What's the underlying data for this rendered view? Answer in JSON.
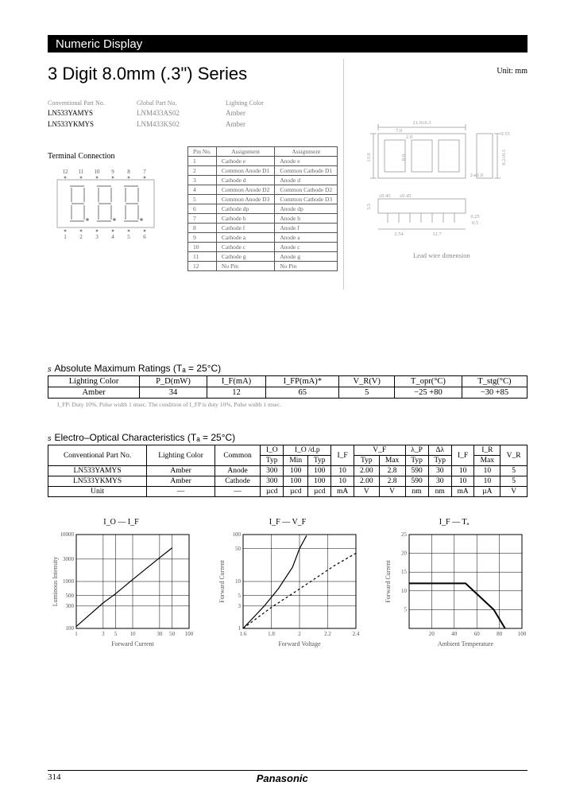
{
  "banner": "Numeric Display",
  "title": "3 Digit 8.0mm (.3\") Series",
  "unit_label": "Unit: mm",
  "parts": {
    "head": {
      "conv": "Conventional Part No.",
      "glob": "Global Part No.",
      "light": "Lighting Color"
    },
    "rows": [
      {
        "conv": "LN533YAMYS",
        "glob": "LNM433AS02",
        "light": "Amber"
      },
      {
        "conv": "LN533YKMYS",
        "glob": "LNM433KS02",
        "light": "Amber"
      }
    ]
  },
  "terminal": {
    "title": "Terminal Connection",
    "pins_top": [
      "12",
      "11",
      "10",
      "9",
      "8",
      "7"
    ],
    "pins_bot": [
      "1",
      "2",
      "3",
      "4",
      "5",
      "6"
    ],
    "header": {
      "no": "Pin No.",
      "a1": "Assignment",
      "a2": "Assignment"
    },
    "rows": [
      {
        "n": "1",
        "a": "Cathode e",
        "b": "Anode e"
      },
      {
        "n": "2",
        "a": "Common Anode D1",
        "b": "Common Cathode D1"
      },
      {
        "n": "3",
        "a": "Cathode d",
        "b": "Anode d"
      },
      {
        "n": "4",
        "a": "Common Anode D2",
        "b": "Common Cathode D2"
      },
      {
        "n": "5",
        "a": "Common Anode D3",
        "b": "Common Cathode D3"
      },
      {
        "n": "6",
        "a": "Cathode dp",
        "b": "Anode dp"
      },
      {
        "n": "7",
        "a": "Cathode b",
        "b": "Anode b"
      },
      {
        "n": "8",
        "a": "Cathode f",
        "b": "Anode f"
      },
      {
        "n": "9",
        "a": "Cathode a",
        "b": "Anode a"
      },
      {
        "n": "10",
        "a": "Cathode c",
        "b": "Anode c"
      },
      {
        "n": "11",
        "a": "Cathode g",
        "b": "Anode g"
      },
      {
        "n": "12",
        "a": "No Pin",
        "b": "No Pin"
      }
    ]
  },
  "dim": {
    "top_w": "21.0±0.3",
    "seg_w": "7.0",
    "gap": "2.0",
    "h": "13.0",
    "side_h": "9.2±0.3",
    "side_t": "0.55",
    "seg_h": "8.0",
    "pin_pitch": "2.54",
    "pin_a": "±0.45",
    "pin_b": "±0.45",
    "pin_h": "3.5",
    "pin_w": "0.25",
    "pin_t": "0.5",
    "pin_span": "12.7",
    "pin_hole": "2-ø1.0",
    "lead_note": "Lead wire dimension"
  },
  "amr": {
    "title": "Absolute Maximum Ratings (Tₐ = 25°C)",
    "head": [
      "Lighting Color",
      "P_D(mW)",
      "I_F(mA)",
      "I_FP(mA)*",
      "V_R(V)",
      "T_opr(°C)",
      "T_stg(°C)"
    ],
    "row": [
      "Amber",
      "34",
      "12",
      "65",
      "5",
      "−25   +80",
      "−30   +85"
    ],
    "note": "I_FP: Duty 10%, Pulse width 1 msec. The condition of I_FP is duty 10%, Pulse width 1 msec."
  },
  "eo": {
    "title": "Electro–Optical Characteristics (Tₐ = 25°C)",
    "head1": [
      "Conventional Part No.",
      "Lighting Color",
      "Common",
      "I_O",
      "I_O /d.p",
      "",
      "V_F",
      "λ_P",
      "Δλ",
      "",
      "I_R",
      ""
    ],
    "head2": [
      "Typ",
      "Min",
      "Typ",
      "I_F",
      "Typ",
      "Max",
      "Typ",
      "Typ",
      "I_F",
      "Max",
      "V_R"
    ],
    "rows": [
      [
        "LN533YAMYS",
        "Amber",
        "Anode",
        "300",
        "100",
        "100",
        "10",
        "2.00",
        "2.8",
        "590",
        "30",
        "10",
        "10",
        "5"
      ],
      [
        "LN533YKMYS",
        "Amber",
        "Cathode",
        "300",
        "100",
        "100",
        "10",
        "2.00",
        "2.8",
        "590",
        "30",
        "10",
        "10",
        "5"
      ],
      [
        "Unit",
        "—",
        "—",
        "µcd",
        "µcd",
        "µcd",
        "mA",
        "V",
        "V",
        "nm",
        "nm",
        "mA",
        "µA",
        "V"
      ]
    ]
  },
  "charts": {
    "c1": {
      "title": "I_O — I_F",
      "xlabel": "Forward Current",
      "ylabel": "Luminous Intensity",
      "type": "line",
      "scale": "log-log",
      "xlim": [
        1,
        100
      ],
      "ylim": [
        100,
        10000
      ],
      "xticks": [
        1,
        3,
        5,
        10,
        30,
        50,
        100
      ],
      "yticks": [
        100,
        300,
        500,
        1000,
        3000,
        10000
      ],
      "series": {
        "x": [
          1,
          3,
          5,
          10,
          30,
          50
        ],
        "y": [
          110,
          350,
          550,
          1100,
          3200,
          5200
        ]
      },
      "line_color": "#000000",
      "grid_color": "#000000",
      "bg": "#ffffff",
      "fontsize": 8
    },
    "c2": {
      "title": "I_F — V_F",
      "xlabel": "Forward Voltage",
      "ylabel": "Forward Current",
      "type": "line",
      "scale": "x-linear-y-log",
      "xlim": [
        1.6,
        2.4
      ],
      "ylim": [
        1,
        100
      ],
      "xticks": [
        1.6,
        1.8,
        2.0,
        2.2,
        2.4
      ],
      "yticks": [
        1,
        3,
        5,
        10,
        50,
        100
      ],
      "series": [
        {
          "style": "solid",
          "x": [
            1.6,
            1.75,
            1.85,
            1.95,
            2.0,
            2.05
          ],
          "y": [
            1,
            3,
            7,
            20,
            50,
            95
          ]
        },
        {
          "style": "dashed",
          "x": [
            1.6,
            1.8,
            1.95,
            2.1,
            2.25,
            2.4
          ],
          "y": [
            1,
            2.8,
            5.5,
            11,
            22,
            40
          ]
        }
      ],
      "line_color": "#000000",
      "grid_color": "#000000",
      "bg": "#ffffff",
      "fontsize": 8
    },
    "c3": {
      "title": "I_F — Tₐ",
      "xlabel": "Ambient Temperature",
      "ylabel": "Forward Current",
      "type": "line",
      "scale": "linear",
      "xlim": [
        0,
        100
      ],
      "ylim": [
        0,
        25
      ],
      "xticks": [
        20,
        40,
        60,
        80,
        100
      ],
      "yticks": [
        5,
        10,
        15,
        20,
        25
      ],
      "series": {
        "x": [
          0,
          25,
          50,
          75,
          85
        ],
        "y": [
          12,
          12,
          12,
          5,
          0
        ]
      },
      "line_color": "#000000",
      "grid_color": "#000000",
      "bg": "#ffffff",
      "fontsize": 8,
      "line_width": 2
    }
  },
  "footer": {
    "page": "314",
    "brand": "Panasonic"
  }
}
